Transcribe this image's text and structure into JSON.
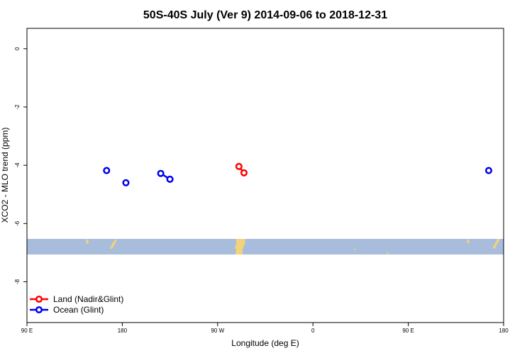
{
  "chart_data": {
    "type": "line",
    "title": "50S-40S July (Ver 9)   2014-09-06 to 2018-12-31",
    "x_label": "Longitude (deg E)",
    "y_label": "XCO2 - MLO trend (ppm)",
    "xlim": [
      90,
      540
    ],
    "xticks": [
      {
        "value": 90,
        "label": "90 E"
      },
      180,
      {
        "value": 270,
        "label": "90 W"
      },
      {
        "value": 360,
        "label": "0"
      },
      {
        "value": 450,
        "label": "90 E"
      },
      {
        "value": 540,
        "label": "180"
      }
    ],
    "ylim": [
      -9.4,
      0.7
    ],
    "yticks": [
      0,
      -2,
      -4,
      -6,
      -8
    ],
    "legend": "bottom-left",
    "series": [
      {
        "name": "Land (Nadir&Glint)",
        "color": "#ff0000",
        "x": [
          290.1,
          294.9
        ],
        "values": [
          -4.04,
          -4.26
        ]
      },
      {
        "name": "Ocean (Glint)",
        "color": "#0000ee",
        "x": [
          165.2,
          null,
          183.4,
          null,
          216.3,
          225.0,
          null,
          525.9
        ],
        "values": [
          -4.18,
          null,
          -4.6,
          null,
          -4.28,
          -4.48,
          null,
          -4.18
        ]
      }
    ]
  }
}
